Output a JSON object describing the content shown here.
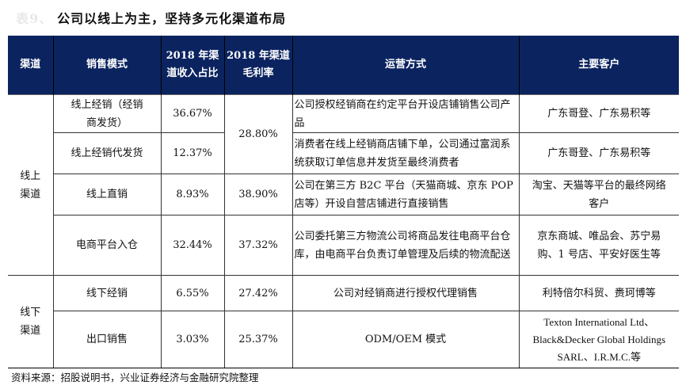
{
  "title_prefix": "表9、",
  "title": "公司以线上为主，坚持多元化渠道布局",
  "headers": [
    "渠道",
    "销售模式",
    "2018 年渠道收入占比",
    "2018 年渠道毛利率",
    "运营方式",
    "主要客户"
  ],
  "groups": [
    {
      "channel": "线上渠道"
    },
    {
      "channel": "线下渠道"
    }
  ],
  "rows": [
    {
      "mode": "线上经销（经销商发货）",
      "share": "36.67%",
      "margin": "28.80%",
      "operation": "公司授权经销商在约定平台开设店铺销售公司产品",
      "customers": "广东哥登、广东易积等"
    },
    {
      "mode": "线上经销代发货",
      "share": "12.37%",
      "margin": "",
      "operation": "消费者在线上经销商店铺下单，公司通过富润系统获取订单信息并发货至最终消费者",
      "customers": "广东哥登、广东易积等"
    },
    {
      "mode": "线上直销",
      "share": "8.93%",
      "margin": "38.90%",
      "operation": "公司在第三方 B2C 平台（天猫商城、京东 POP 店等）开设自营店铺进行直接销售",
      "customers": "淘宝、天猫等平台的最终网络客户"
    },
    {
      "mode": "电商平台入仓",
      "share": "32.44%",
      "margin": "37.32%",
      "operation": "公司委托第三方物流公司将商品发往电商平台仓库，由电商平台负责订单管理及后续的物流配送",
      "customers": "京东商城、唯品会、苏宁易购、1 号店、平安好医生等"
    },
    {
      "mode": "线下经销",
      "share": "6.55%",
      "margin": "27.42%",
      "operation": "公司对经销商进行授权代理销售",
      "customers": "利特倍尔科贸、赉珂博等"
    },
    {
      "mode": "出口销售",
      "share": "3.03%",
      "margin": "25.37%",
      "operation": "ODM/OEM 模式",
      "customers": "Texton International Ltd、Black&Decker Global Holdings SARL、I.R.M.C.等"
    }
  ],
  "source": "资料来源：招股说明书，兴业证券经济与金融研究院整理"
}
